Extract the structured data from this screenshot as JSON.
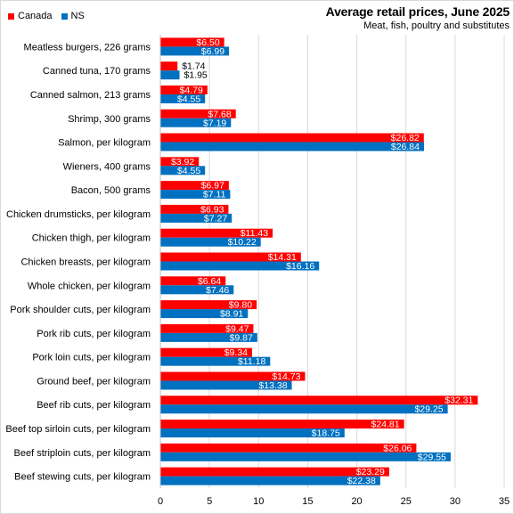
{
  "chart_data": {
    "type": "bar",
    "orientation": "horizontal",
    "title": "Average retail prices, June 2025",
    "subtitle": "Meat,  fish, poultry and substitutes",
    "legend_position": "top-left",
    "xlim": [
      0,
      35
    ],
    "xticks": [
      0,
      5,
      10,
      15,
      20,
      25,
      30,
      35
    ],
    "grid": true,
    "categories": [
      "Meatless burgers, 226 grams",
      "Canned tuna, 170 grams",
      "Canned salmon, 213 grams",
      "Shrimp, 300 grams",
      "Salmon, per kilogram",
      "Wieners, 400 grams",
      "Bacon, 500 grams",
      "Chicken drumsticks, per kilogram",
      "Chicken thigh, per kilogram",
      "Chicken breasts, per kilogram",
      "Whole chicken, per kilogram",
      "Pork shoulder cuts, per kilogram",
      "Pork rib cuts, per kilogram",
      "Pork loin cuts, per kilogram",
      "Ground beef, per kilogram",
      "Beef rib cuts, per kilogram",
      "Beef top sirloin cuts, per kilogram",
      "Beef striploin cuts, per kilogram",
      "Beef stewing cuts, per kilogram"
    ],
    "series": [
      {
        "name": "Canada",
        "color": "#ff0000",
        "values": [
          6.5,
          1.74,
          4.79,
          7.68,
          26.82,
          3.92,
          6.97,
          6.93,
          11.43,
          14.31,
          6.64,
          9.8,
          9.47,
          9.34,
          14.73,
          32.31,
          24.81,
          26.06,
          23.29
        ],
        "labels": [
          "$6.50",
          "$1.74",
          "$4.79",
          "$7.68",
          "$26.82",
          "$3.92",
          "$6.97",
          "$6.93",
          "$11.43",
          "$14.31",
          "$6.64",
          "$9.80",
          "$9.47",
          "$9.34",
          "$14.73",
          "$32.31",
          "$24.81",
          "$26.06",
          "$23.29"
        ]
      },
      {
        "name": "NS",
        "color": "#0070c0",
        "values": [
          6.99,
          1.95,
          4.55,
          7.19,
          26.84,
          4.55,
          7.11,
          7.27,
          10.22,
          16.16,
          7.46,
          8.91,
          9.87,
          11.18,
          13.38,
          29.25,
          18.75,
          29.55,
          22.38
        ],
        "labels": [
          "$6.99",
          "$1.95",
          "$4.55",
          "$7.19",
          "$26.84",
          "$4.55",
          "$7.11",
          "$7.27",
          "$10.22",
          "$16.16",
          "$7.46",
          "$8.91",
          "$9.87",
          "$11.18",
          "$13.38",
          "$29.25",
          "$18.75",
          "$29.55",
          "$22.38"
        ]
      }
    ]
  }
}
